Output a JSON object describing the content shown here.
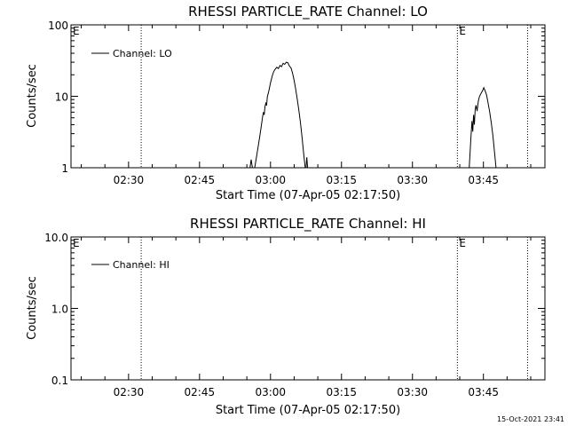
{
  "chart_data": [
    {
      "type": "line",
      "title": "RHESSI PARTICLE_RATE Channel: LO",
      "ylabel": "Counts/sec",
      "xlabel": "Start Time (07-Apr-05 02:17:50)",
      "yscale": "log",
      "ylim": [
        1,
        100
      ],
      "xlim": [
        "02:17:50",
        "03:58:00"
      ],
      "grid": false,
      "legend_position": "top-left",
      "x_ticks": [
        "02:30",
        "02:45",
        "03:00",
        "03:15",
        "03:30",
        "03:45"
      ],
      "y_ticks": [
        {
          "value": 100,
          "label": "100"
        },
        {
          "value": 10,
          "label": "10"
        },
        {
          "value": 1,
          "label": "1"
        }
      ],
      "markers": [
        {
          "time": "02:32:40",
          "label": ""
        },
        {
          "time": "03:39:30",
          "label": "E"
        },
        {
          "time": "03:54:20",
          "label": ""
        }
      ],
      "edge_label": "E",
      "series": [
        {
          "name": "Channel: LO",
          "segments": [
            [
              [
                "02:55:40",
                1.0
              ],
              [
                "02:55:55",
                1.3
              ],
              [
                "02:56:10",
                1.0
              ]
            ],
            [
              [
                "02:56:40",
                1.0
              ],
              [
                "02:57:10",
                1.6
              ],
              [
                "02:57:40",
                2.6
              ],
              [
                "02:58:00",
                3.6
              ],
              [
                "02:58:20",
                5.2
              ],
              [
                "02:58:30",
                6.0
              ],
              [
                "02:58:40",
                5.5
              ],
              [
                "02:58:50",
                7.2
              ],
              [
                "02:59:00",
                8.0
              ],
              [
                "02:59:10",
                7.4
              ],
              [
                "02:59:20",
                9.8
              ],
              [
                "02:59:40",
                12.0
              ],
              [
                "03:00:00",
                15.5
              ],
              [
                "03:00:20",
                19.0
              ],
              [
                "03:00:40",
                22.0
              ],
              [
                "03:01:00",
                24.0
              ],
              [
                "03:01:20",
                25.5
              ],
              [
                "03:01:40",
                24.5
              ],
              [
                "03:02:00",
                27.0
              ],
              [
                "03:02:20",
                26.0
              ],
              [
                "03:02:40",
                29.0
              ],
              [
                "03:03:00",
                28.0
              ],
              [
                "03:03:20",
                30.0
              ],
              [
                "03:03:40",
                29.5
              ],
              [
                "03:04:00",
                26.5
              ],
              [
                "03:04:20",
                25.0
              ],
              [
                "03:04:40",
                21.0
              ],
              [
                "03:05:00",
                16.5
              ],
              [
                "03:05:20",
                12.5
              ],
              [
                "03:05:40",
                9.0
              ],
              [
                "03:06:00",
                6.3
              ],
              [
                "03:06:20",
                4.2
              ],
              [
                "03:06:40",
                2.7
              ],
              [
                "03:07:00",
                1.6
              ],
              [
                "03:07:20",
                1.0
              ]
            ],
            [
              [
                "03:07:30",
                1.0
              ],
              [
                "03:07:40",
                1.4
              ],
              [
                "03:07:50",
                1.0
              ]
            ],
            [
              [
                "03:42:00",
                1.0
              ],
              [
                "03:42:20",
                2.5
              ],
              [
                "03:42:35",
                4.5
              ],
              [
                "03:42:45",
                3.2
              ],
              [
                "03:42:55",
                5.5
              ],
              [
                "03:43:05",
                4.0
              ],
              [
                "03:43:15",
                6.5
              ],
              [
                "03:43:25",
                7.5
              ],
              [
                "03:43:40",
                6.2
              ],
              [
                "03:43:55",
                8.5
              ],
              [
                "03:44:10",
                10.0
              ],
              [
                "03:44:30",
                11.0
              ],
              [
                "03:44:50",
                12.0
              ],
              [
                "03:45:05",
                13.2
              ],
              [
                "03:45:20",
                12.0
              ],
              [
                "03:45:40",
                10.5
              ],
              [
                "03:46:00",
                8.0
              ],
              [
                "03:46:20",
                6.0
              ],
              [
                "03:46:40",
                4.2
              ],
              [
                "03:47:00",
                2.8
              ],
              [
                "03:47:20",
                1.7
              ],
              [
                "03:47:40",
                1.0
              ]
            ]
          ]
        }
      ]
    },
    {
      "type": "line",
      "title": "RHESSI PARTICLE_RATE Channel: HI",
      "ylabel": "Counts/sec",
      "xlabel": "Start Time (07-Apr-05 02:17:50)",
      "yscale": "log",
      "ylim": [
        0.1,
        10
      ],
      "xlim": [
        "02:17:50",
        "03:58:00"
      ],
      "grid": false,
      "legend_position": "top-left",
      "x_ticks": [
        "02:30",
        "02:45",
        "03:00",
        "03:15",
        "03:30",
        "03:45"
      ],
      "y_ticks": [
        {
          "value": 10,
          "label": "10.0"
        },
        {
          "value": 1,
          "label": "1.0"
        },
        {
          "value": 0.1,
          "label": "0.1"
        }
      ],
      "markers": [
        {
          "time": "02:32:40",
          "label": ""
        },
        {
          "time": "03:39:30",
          "label": "E"
        },
        {
          "time": "03:54:20",
          "label": ""
        }
      ],
      "edge_label": "E",
      "series": [
        {
          "name": "Channel: HI",
          "segments": []
        }
      ]
    }
  ],
  "footer": {
    "timestamp": "15-Oct-2021 23:41"
  }
}
